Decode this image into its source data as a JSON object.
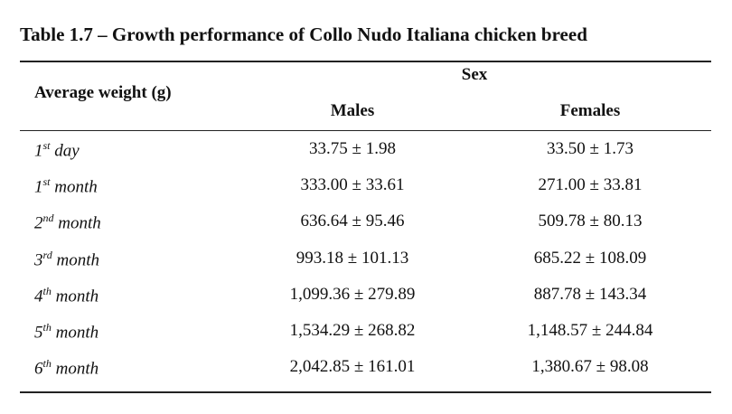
{
  "title": "Table 1.7 – Growth performance of Collo Nudo Italiana chicken breed",
  "header": {
    "group_label": "Sex",
    "row_label": "Average weight (g)",
    "columns": [
      "Males",
      "Females"
    ]
  },
  "rows": [
    {
      "num": "1",
      "sup": "st",
      "unit": "day",
      "males": "33.75 ± 1.98",
      "females": "33.50 ± 1.73"
    },
    {
      "num": "1",
      "sup": "st",
      "unit": "month",
      "males": "333.00 ± 33.61",
      "females": "271.00 ± 33.81"
    },
    {
      "num": "2",
      "sup": "nd",
      "unit": "month",
      "males": "636.64 ± 95.46",
      "females": "509.78 ± 80.13"
    },
    {
      "num": "3",
      "sup": "rd",
      "unit": "month",
      "males": "993.18 ± 101.13",
      "females": "685.22 ± 108.09"
    },
    {
      "num": "4",
      "sup": "th",
      "unit": "month",
      "males": "1,099.36 ± 279.89",
      "females": "887.78 ± 143.34"
    },
    {
      "num": "5",
      "sup": "th",
      "unit": "month",
      "males": "1,534.29 ± 268.82",
      "females": "1,148.57 ± 244.84"
    },
    {
      "num": "6",
      "sup": "th",
      "unit": "month",
      "males": "2,042.85 ± 161.01",
      "females": "1,380.67 ± 98.08"
    }
  ]
}
